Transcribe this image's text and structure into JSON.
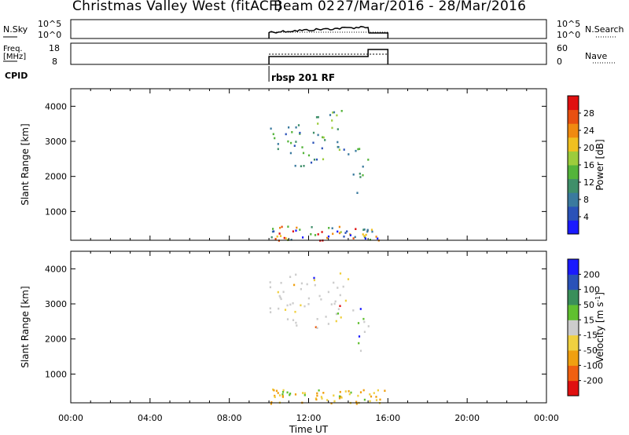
{
  "header": {
    "station": "Christmas Valley West (fitACF)",
    "beam": "Beam 02",
    "date_range": "27/Mar/2016 - 28/Mar/2016"
  },
  "panels": {
    "nsky_label": "N.Sky",
    "nsearch_label": "N.Search",
    "freq_label_1": "Freq.",
    "freq_label_2": "[MHz]",
    "nave_label": "Nave",
    "cpid_label": "CPID",
    "cpid_value": "rbsp 201 RF",
    "left_ticks_top": [
      "10^5",
      "10^0"
    ],
    "right_ticks_top": [
      "10^5",
      "10^0"
    ],
    "freq_ticks": [
      "18",
      "8"
    ],
    "nave_ticks": [
      "60",
      "0"
    ]
  },
  "chart_data": [
    {
      "type": "heatmap",
      "quantity": "Power",
      "colorbar_label": "Power [dB]",
      "colorbar_ticks": [
        4,
        8,
        12,
        16,
        20,
        24,
        28
      ],
      "colorbar_range": [
        0,
        32
      ],
      "colors": [
        "#1a1aff",
        "#2a52b8",
        "#3a7a9e",
        "#3f8f6a",
        "#54b43a",
        "#9ccc3c",
        "#f0c020",
        "#f08a10",
        "#e85010",
        "#e01010"
      ],
      "ylabel": "Slant Range [km]",
      "yticks": [
        1000,
        2000,
        3000,
        4000
      ],
      "ylim": [
        180,
        4500
      ],
      "x_data_range_ut": [
        10.0,
        16.0
      ],
      "regions": [
        {
          "t0": 10.0,
          "t1": 10.6,
          "r0": 2700,
          "r1": 3700,
          "dominant": "blue-green"
        },
        {
          "t0": 10.6,
          "t1": 12.2,
          "r0": 2300,
          "r1": 3700,
          "dominant": "blue-green"
        },
        {
          "t0": 12.2,
          "t1": 14.0,
          "r0": 2300,
          "r1": 3900,
          "dominant": "blue-green-yellow"
        },
        {
          "t0": 14.2,
          "t1": 15.0,
          "r0": 1500,
          "r1": 2900,
          "dominant": "blue"
        },
        {
          "t0": 10.0,
          "t1": 16.0,
          "r0": 180,
          "r1": 600,
          "dominant": "mixed"
        }
      ]
    },
    {
      "type": "heatmap",
      "quantity": "Velocity",
      "colorbar_label": "Velocity [m s^-1]",
      "colorbar_ticks": [
        -200,
        -100,
        -50,
        -15,
        15,
        50,
        100,
        200
      ],
      "colors": [
        "#e01010",
        "#f06010",
        "#f0a010",
        "#f0d040",
        "#cccccc",
        "#60c030",
        "#3a8f5a",
        "#2a52b8",
        "#1a1aff"
      ],
      "ylabel": "Slant Range [km]",
      "yticks": [
        1000,
        2000,
        3000,
        4000
      ],
      "ylim": [
        180,
        4500
      ],
      "x_data_range_ut": [
        10.0,
        16.0
      ],
      "regions": [
        {
          "t0": 10.0,
          "t1": 14.0,
          "r0": 2300,
          "r1": 3900,
          "dominant": "gray"
        },
        {
          "t0": 14.2,
          "t1": 15.0,
          "r0": 1500,
          "r1": 2900,
          "dominant": "gray"
        },
        {
          "t0": 10.0,
          "t1": 16.0,
          "r0": 180,
          "r1": 600,
          "dominant": "orange"
        }
      ]
    }
  ],
  "xaxis": {
    "label": "Time UT",
    "ticks": [
      "00:00",
      "04:00",
      "08:00",
      "12:00",
      "16:00",
      "20:00",
      "00:00"
    ],
    "range_hours": [
      0,
      24
    ]
  }
}
